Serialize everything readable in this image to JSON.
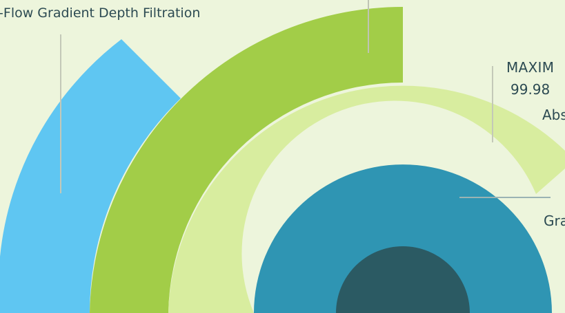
{
  "colors": {
    "background": "#edf5dc",
    "ring_outer": "#5fc6f2",
    "ring_second": "#a2cd48",
    "ring_third": "#d8ed9f",
    "ring_fourth": "#2f95b3",
    "ring_core": "#2b5a63",
    "leader_line": "#c3c8b8",
    "label_text": "#2c4a52"
  },
  "labels": {
    "left_label": "n-Flow Gradient Depth Filtration",
    "top_label": "",
    "maxim_heading": "MAXIM",
    "maxim_value": "99.98",
    "maxim_abs": "Abs",
    "gra_label": "Gra"
  }
}
